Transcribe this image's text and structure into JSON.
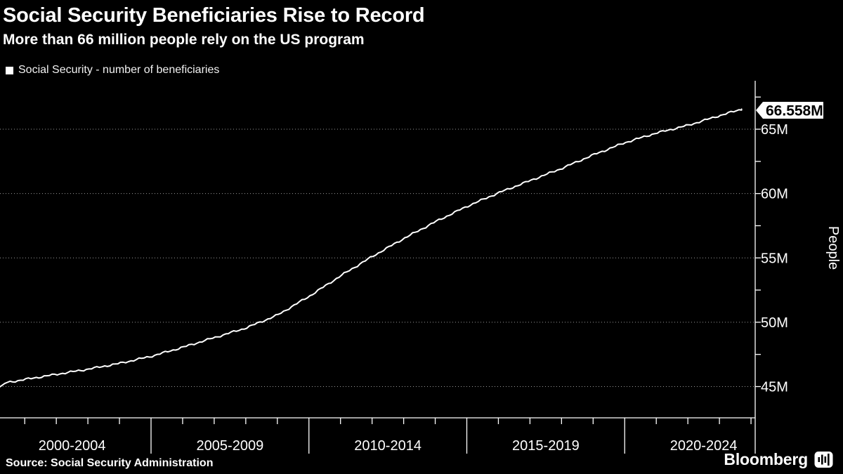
{
  "header": {
    "title": "Social Security Beneficiaries Rise to Record",
    "subtitle": "More than 66 million people rely on the US program"
  },
  "legend": {
    "items": [
      {
        "label": "Social Security - number of beneficiaries",
        "swatch_color": "#ffffff"
      }
    ]
  },
  "chart_data": {
    "type": "line",
    "title": "Social Security Beneficiaries Rise to Record",
    "ylabel": "People",
    "xlabel": "",
    "grid": "horizontal-dotted",
    "legend_position": "top-left",
    "y_axis_side": "right",
    "ylim_labeled": [
      45,
      65
    ],
    "y_minor_tick_step": 2.5,
    "y_ticks": [
      {
        "value": 45,
        "label": "45M"
      },
      {
        "value": 50,
        "label": "50M"
      },
      {
        "value": 55,
        "label": "55M"
      },
      {
        "value": 60,
        "label": "60M"
      },
      {
        "value": 65,
        "label": "65M"
      }
    ],
    "x_sections": [
      {
        "label": "2000-2004",
        "center_year": 2002.5
      },
      {
        "label": "2005-2009",
        "center_year": 2007.5
      },
      {
        "label": "2010-2014",
        "center_year": 2012.5
      },
      {
        "label": "2015-2019",
        "center_year": 2017.5
      },
      {
        "label": "2020-2024",
        "center_year": 2022.5
      }
    ],
    "x_section_boundaries_years": [
      2005,
      2010,
      2015,
      2020
    ],
    "x_minor_tick_years_step": 1,
    "series": [
      {
        "name": "Social Security - number of beneficiaries",
        "unit": "millions of people",
        "anchor_years": [
          2000.2,
          2000.4,
          2001,
          2002,
          2003,
          2004,
          2005,
          2006,
          2007,
          2008,
          2009,
          2010,
          2011,
          2012,
          2013,
          2014,
          2015,
          2016,
          2017,
          2018,
          2019,
          2020,
          2021,
          2022,
          2023,
          2023.7
        ],
        "anchor_values": [
          44.95,
          45.3,
          45.55,
          45.95,
          46.35,
          46.8,
          47.35,
          48.05,
          48.8,
          49.55,
          50.55,
          52.0,
          53.6,
          55.1,
          56.5,
          57.8,
          59.0,
          60.05,
          61.0,
          61.95,
          63.0,
          63.95,
          64.7,
          65.3,
          66.05,
          66.558
        ]
      }
    ],
    "latest_value": 66.558,
    "latest_label": "66.558M"
  },
  "colors": {
    "background": "#000000",
    "line": "#ffffff",
    "axis": "#ffffff",
    "grid": "#9a9a9a",
    "callout_bg": "#ffffff",
    "callout_text": "#000000"
  },
  "source": {
    "text": "Source: Social Security Administration"
  },
  "branding": {
    "name": "Bloomberg"
  }
}
